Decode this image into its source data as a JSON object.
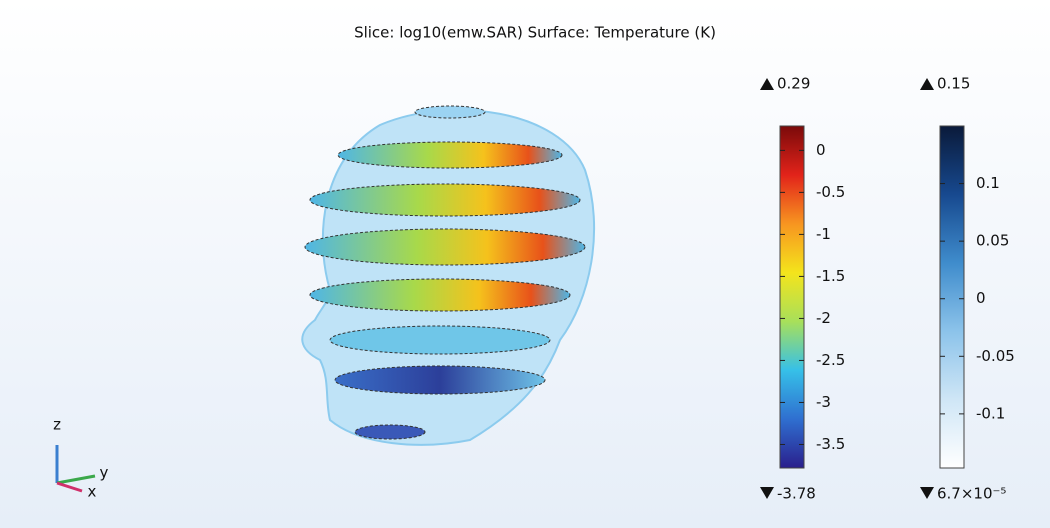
{
  "title": "Slice: log10(emw.SAR)  Surface: Temperature (K)",
  "colorbars": [
    {
      "max": 0.29,
      "min": -3.78,
      "ylim": [
        -3.78,
        0.29
      ],
      "ticks": [
        0,
        -0.5,
        -1,
        -1.5,
        -2,
        -2.5,
        -3,
        -3.5
      ],
      "colors": [
        "#2a1f8c",
        "#2f6fd0",
        "#36c0e8",
        "#a8e05a",
        "#f4e41c",
        "#f79520",
        "#e2231a",
        "#7a0a0a"
      ]
    },
    {
      "max": 0.15,
      "min": {
        "value": 6.7e-05,
        "label": "6.7×10⁻⁵"
      },
      "ylim": [
        -0.147,
        0.15
      ],
      "ticks": [
        0.1,
        0.05,
        0,
        -0.05,
        -0.1
      ],
      "colors": [
        "#ffffff",
        "#cfe6f6",
        "#8cc3ea",
        "#3f8ccc",
        "#17498f",
        "#0a1a3a"
      ]
    }
  ],
  "axes": {
    "z": "z",
    "y": "y",
    "x": "x"
  }
}
